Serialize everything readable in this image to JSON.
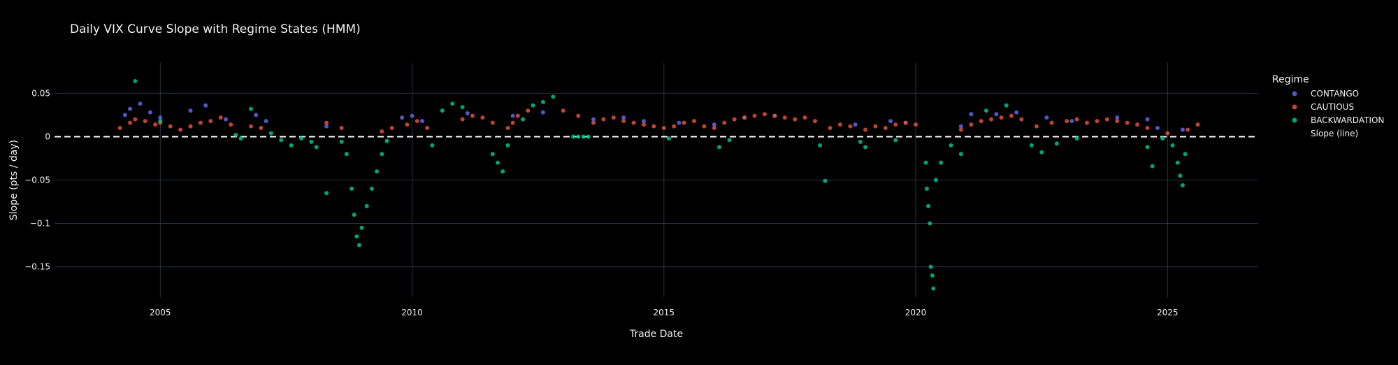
{
  "chart_data": {
    "type": "scatter",
    "title": "Daily VIX Curve Slope with Regime States (HMM)",
    "xlabel": "Trade Date",
    "ylabel": "Slope (pts / day)",
    "xlim": [
      2002.9,
      2026.8
    ],
    "ylim": [
      -0.185,
      0.085
    ],
    "x_ticks": [
      2005,
      2010,
      2015,
      2020,
      2025
    ],
    "x_tick_labels": [
      "2005",
      "2010",
      "2015",
      "2020",
      "2025"
    ],
    "y_ticks": [
      0.05,
      0,
      -0.05,
      -0.1,
      -0.15
    ],
    "y_tick_labels": [
      "0.05",
      "0",
      "−0.05",
      "−0.1",
      "−0.15"
    ],
    "grid": true,
    "reference_line": {
      "y": 0,
      "style": "dashed",
      "color": "#ffffff"
    },
    "legend": {
      "title": "Regime",
      "placement": "right",
      "entries": [
        {
          "label": "CONTANGO",
          "color": "#636efa",
          "marker": "circle"
        },
        {
          "label": "CAUTIOUS",
          "color": "#ef553b",
          "marker": "circle"
        },
        {
          "label": "BACKWARDATION",
          "color": "#00cc96",
          "marker": "circle"
        },
        {
          "label": "Slope (line)",
          "color": "#000000",
          "marker": "none"
        }
      ]
    },
    "series": [
      {
        "name": "CONTANGO",
        "color": "#636efa",
        "points": [
          [
            2004.3,
            0.025
          ],
          [
            2004.4,
            0.032
          ],
          [
            2004.6,
            0.038
          ],
          [
            2004.8,
            0.028
          ],
          [
            2005.0,
            0.022
          ],
          [
            2005.6,
            0.03
          ],
          [
            2005.9,
            0.036
          ],
          [
            2006.3,
            0.02
          ],
          [
            2006.9,
            0.025
          ],
          [
            2007.1,
            0.018
          ],
          [
            2008.3,
            0.012
          ],
          [
            2009.8,
            0.022
          ],
          [
            2010.0,
            0.024
          ],
          [
            2010.2,
            0.018
          ],
          [
            2011.1,
            0.027
          ],
          [
            2012.0,
            0.024
          ],
          [
            2012.6,
            0.028
          ],
          [
            2013.6,
            0.02
          ],
          [
            2014.2,
            0.022
          ],
          [
            2014.6,
            0.018
          ],
          [
            2015.3,
            0.016
          ],
          [
            2016.0,
            0.014
          ],
          [
            2016.6,
            0.022
          ],
          [
            2017.2,
            0.024
          ],
          [
            2018.8,
            0.014
          ],
          [
            2019.5,
            0.018
          ],
          [
            2019.8,
            0.016
          ],
          [
            2020.9,
            0.012
          ],
          [
            2021.1,
            0.026
          ],
          [
            2021.6,
            0.026
          ],
          [
            2022.0,
            0.028
          ],
          [
            2022.6,
            0.022
          ],
          [
            2023.1,
            0.018
          ],
          [
            2024.0,
            0.022
          ],
          [
            2024.6,
            0.02
          ],
          [
            2024.8,
            0.01
          ],
          [
            2025.3,
            0.008
          ]
        ]
      },
      {
        "name": "CAUTIOUS",
        "color": "#ef553b",
        "points": [
          [
            2004.2,
            0.01
          ],
          [
            2004.4,
            0.016
          ],
          [
            2004.5,
            0.02
          ],
          [
            2004.7,
            0.018
          ],
          [
            2004.9,
            0.014
          ],
          [
            2005.0,
            0.016
          ],
          [
            2005.2,
            0.012
          ],
          [
            2005.4,
            0.008
          ],
          [
            2005.6,
            0.012
          ],
          [
            2005.8,
            0.016
          ],
          [
            2006.0,
            0.018
          ],
          [
            2006.2,
            0.022
          ],
          [
            2006.4,
            0.014
          ],
          [
            2006.8,
            0.012
          ],
          [
            2007.0,
            0.01
          ],
          [
            2008.3,
            0.016
          ],
          [
            2008.6,
            0.01
          ],
          [
            2009.4,
            0.006
          ],
          [
            2009.6,
            0.01
          ],
          [
            2009.9,
            0.014
          ],
          [
            2010.1,
            0.018
          ],
          [
            2010.3,
            0.01
          ],
          [
            2011.0,
            0.02
          ],
          [
            2011.2,
            0.024
          ],
          [
            2011.4,
            0.022
          ],
          [
            2011.6,
            0.016
          ],
          [
            2011.9,
            0.01
          ],
          [
            2012.0,
            0.016
          ],
          [
            2012.1,
            0.024
          ],
          [
            2012.3,
            0.03
          ],
          [
            2013.0,
            0.03
          ],
          [
            2013.3,
            0.024
          ],
          [
            2013.6,
            0.016
          ],
          [
            2013.8,
            0.02
          ],
          [
            2014.0,
            0.022
          ],
          [
            2014.2,
            0.018
          ],
          [
            2014.4,
            0.016
          ],
          [
            2014.6,
            0.014
          ],
          [
            2014.8,
            0.012
          ],
          [
            2015.0,
            0.01
          ],
          [
            2015.2,
            0.012
          ],
          [
            2015.4,
            0.016
          ],
          [
            2015.6,
            0.018
          ],
          [
            2015.8,
            0.012
          ],
          [
            2016.0,
            0.01
          ],
          [
            2016.2,
            0.016
          ],
          [
            2016.4,
            0.02
          ],
          [
            2016.6,
            0.022
          ],
          [
            2016.8,
            0.024
          ],
          [
            2017.0,
            0.026
          ],
          [
            2017.2,
            0.024
          ],
          [
            2017.4,
            0.022
          ],
          [
            2017.6,
            0.02
          ],
          [
            2017.8,
            0.022
          ],
          [
            2018.0,
            0.018
          ],
          [
            2018.3,
            0.01
          ],
          [
            2018.5,
            0.014
          ],
          [
            2018.7,
            0.012
          ],
          [
            2019.0,
            0.008
          ],
          [
            2019.2,
            0.012
          ],
          [
            2019.4,
            0.01
          ],
          [
            2019.6,
            0.014
          ],
          [
            2019.8,
            0.016
          ],
          [
            2020.0,
            0.014
          ],
          [
            2020.9,
            0.008
          ],
          [
            2021.1,
            0.014
          ],
          [
            2021.3,
            0.018
          ],
          [
            2021.5,
            0.02
          ],
          [
            2021.7,
            0.022
          ],
          [
            2021.9,
            0.024
          ],
          [
            2022.1,
            0.02
          ],
          [
            2022.4,
            0.012
          ],
          [
            2022.7,
            0.016
          ],
          [
            2023.0,
            0.018
          ],
          [
            2023.2,
            0.02
          ],
          [
            2023.4,
            0.016
          ],
          [
            2023.6,
            0.018
          ],
          [
            2023.8,
            0.02
          ],
          [
            2024.0,
            0.018
          ],
          [
            2024.2,
            0.016
          ],
          [
            2024.4,
            0.014
          ],
          [
            2024.6,
            0.01
          ],
          [
            2025.0,
            0.004
          ],
          [
            2025.4,
            0.008
          ],
          [
            2025.6,
            0.014
          ]
        ]
      },
      {
        "name": "BACKWARDATION",
        "color": "#00cc96",
        "points": [
          [
            2004.5,
            0.064
          ],
          [
            2005.0,
            0.018
          ],
          [
            2006.5,
            0.002
          ],
          [
            2006.6,
            -0.002
          ],
          [
            2006.8,
            0.032
          ],
          [
            2007.2,
            0.004
          ],
          [
            2007.4,
            -0.004
          ],
          [
            2007.6,
            -0.01
          ],
          [
            2007.8,
            -0.002
          ],
          [
            2008.0,
            -0.006
          ],
          [
            2008.1,
            -0.012
          ],
          [
            2008.3,
            -0.065
          ],
          [
            2008.6,
            -0.006
          ],
          [
            2008.7,
            -0.02
          ],
          [
            2008.8,
            -0.06
          ],
          [
            2008.85,
            -0.09
          ],
          [
            2008.9,
            -0.115
          ],
          [
            2008.95,
            -0.125
          ],
          [
            2009.0,
            -0.105
          ],
          [
            2009.1,
            -0.08
          ],
          [
            2009.2,
            -0.06
          ],
          [
            2009.3,
            -0.04
          ],
          [
            2009.4,
            -0.02
          ],
          [
            2009.5,
            -0.005
          ],
          [
            2010.4,
            -0.01
          ],
          [
            2010.6,
            0.03
          ],
          [
            2010.8,
            0.038
          ],
          [
            2011.0,
            0.034
          ],
          [
            2011.6,
            -0.02
          ],
          [
            2011.7,
            -0.03
          ],
          [
            2011.8,
            -0.04
          ],
          [
            2011.9,
            -0.01
          ],
          [
            2012.2,
            0.02
          ],
          [
            2012.4,
            0.036
          ],
          [
            2012.6,
            0.04
          ],
          [
            2012.8,
            0.046
          ],
          [
            2013.2,
            0.0
          ],
          [
            2013.3,
            0.0
          ],
          [
            2013.4,
            0.0
          ],
          [
            2013.5,
            0.0
          ],
          [
            2015.1,
            -0.002
          ],
          [
            2016.1,
            -0.012
          ],
          [
            2016.3,
            -0.004
          ],
          [
            2018.1,
            -0.01
          ],
          [
            2018.2,
            -0.051
          ],
          [
            2018.9,
            -0.006
          ],
          [
            2019.0,
            -0.012
          ],
          [
            2019.6,
            -0.004
          ],
          [
            2020.2,
            -0.03
          ],
          [
            2020.22,
            -0.06
          ],
          [
            2020.25,
            -0.08
          ],
          [
            2020.28,
            -0.1
          ],
          [
            2020.3,
            -0.15
          ],
          [
            2020.33,
            -0.16
          ],
          [
            2020.35,
            -0.175
          ],
          [
            2020.4,
            -0.05
          ],
          [
            2020.5,
            -0.03
          ],
          [
            2020.7,
            -0.01
          ],
          [
            2020.9,
            -0.02
          ],
          [
            2021.4,
            0.03
          ],
          [
            2021.8,
            0.036
          ],
          [
            2022.3,
            -0.01
          ],
          [
            2022.5,
            -0.018
          ],
          [
            2022.8,
            -0.008
          ],
          [
            2023.2,
            -0.002
          ],
          [
            2024.6,
            -0.012
          ],
          [
            2024.7,
            -0.034
          ],
          [
            2024.9,
            -0.002
          ],
          [
            2025.1,
            -0.01
          ],
          [
            2025.2,
            -0.03
          ],
          [
            2025.25,
            -0.045
          ],
          [
            2025.3,
            -0.056
          ],
          [
            2025.35,
            -0.02
          ]
        ]
      }
    ]
  }
}
